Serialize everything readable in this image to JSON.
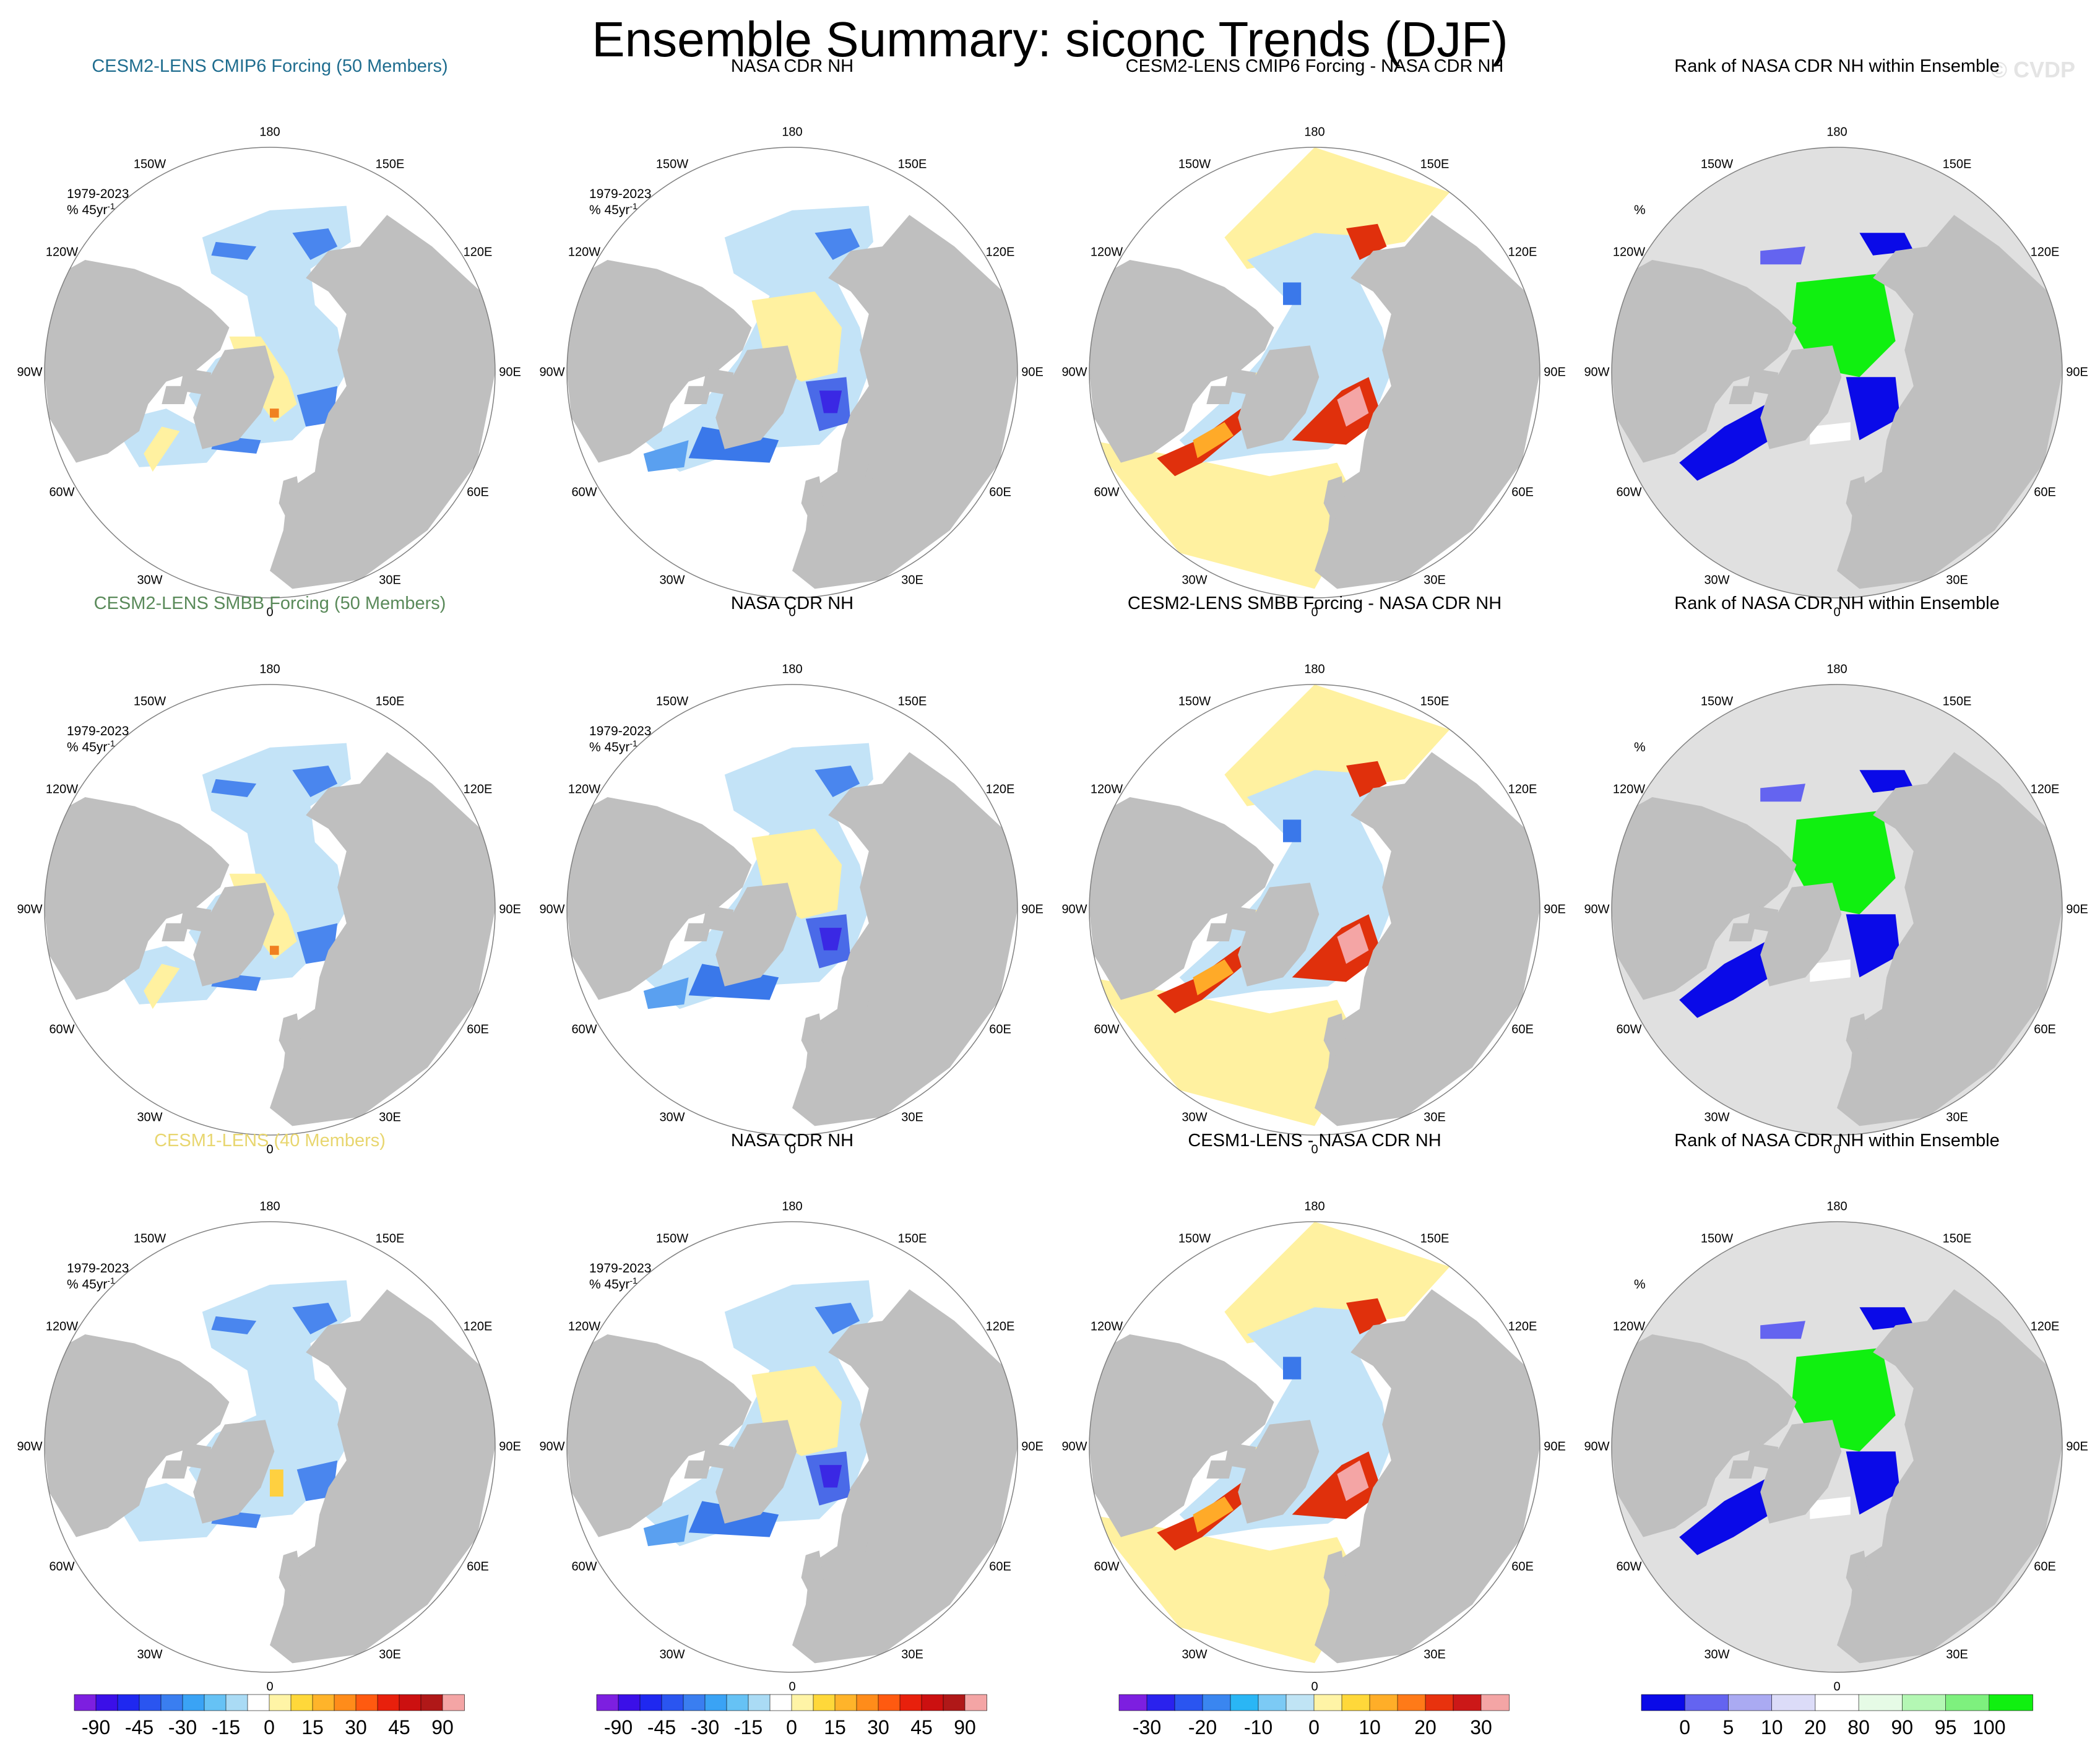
{
  "page": {
    "title": "Ensemble Summary: siconc Trends (DJF)",
    "watermark": "© CVDP"
  },
  "colors": {
    "land": "#bfbfbf",
    "open_water": "#ffffff",
    "rank_background": "#e0e0e0"
  },
  "chart_data": [
    {
      "type": "heatmap",
      "row": 0,
      "col": 0,
      "title": "CESM2-LENS CMIP6 Forcing (50 Members)",
      "title_color": "#1f6d8f",
      "period": "1979-2023",
      "units": "% 45yr",
      "units_sup": "-1",
      "colorbar": "trend",
      "pattern": "model"
    },
    {
      "type": "heatmap",
      "row": 0,
      "col": 1,
      "title": "NASA CDR NH",
      "title_color": "#000000",
      "period": "1979-2023",
      "units": "% 45yr",
      "units_sup": "-1",
      "colorbar": "trend",
      "pattern": "obs"
    },
    {
      "type": "heatmap",
      "row": 0,
      "col": 2,
      "title": "CESM2-LENS CMIP6 Forcing - NASA CDR NH",
      "title_color": "#000000",
      "period": "",
      "units": "",
      "units_sup": "",
      "colorbar": "diff",
      "pattern": "diff"
    },
    {
      "type": "heatmap",
      "row": 0,
      "col": 3,
      "title": "Rank of NASA CDR NH within Ensemble",
      "title_color": "#000000",
      "period": "",
      "units": "%",
      "units_sup": "",
      "colorbar": "rank",
      "pattern": "rank"
    },
    {
      "type": "heatmap",
      "row": 1,
      "col": 0,
      "title": "CESM2-LENS SMBB Forcing (50 Members)",
      "title_color": "#5a8a5a",
      "period": "1979-2023",
      "units": "% 45yr",
      "units_sup": "-1",
      "colorbar": "trend",
      "pattern": "model"
    },
    {
      "type": "heatmap",
      "row": 1,
      "col": 1,
      "title": "NASA CDR NH",
      "title_color": "#000000",
      "period": "1979-2023",
      "units": "% 45yr",
      "units_sup": "-1",
      "colorbar": "trend",
      "pattern": "obs"
    },
    {
      "type": "heatmap",
      "row": 1,
      "col": 2,
      "title": "CESM2-LENS SMBB Forcing - NASA CDR NH",
      "title_color": "#000000",
      "period": "",
      "units": "",
      "units_sup": "",
      "colorbar": "diff",
      "pattern": "diff"
    },
    {
      "type": "heatmap",
      "row": 1,
      "col": 3,
      "title": "Rank of NASA CDR NH within Ensemble",
      "title_color": "#000000",
      "period": "",
      "units": "%",
      "units_sup": "",
      "colorbar": "rank",
      "pattern": "rank"
    },
    {
      "type": "heatmap",
      "row": 2,
      "col": 0,
      "title": "CESM1-LENS (40 Members)",
      "title_color": "#e8d66f",
      "period": "1979-2023",
      "units": "% 45yr",
      "units_sup": "-1",
      "colorbar": "trend",
      "pattern": "model1"
    },
    {
      "type": "heatmap",
      "row": 2,
      "col": 1,
      "title": "NASA CDR NH",
      "title_color": "#000000",
      "period": "1979-2023",
      "units": "% 45yr",
      "units_sup": "-1",
      "colorbar": "trend",
      "pattern": "obs"
    },
    {
      "type": "heatmap",
      "row": 2,
      "col": 2,
      "title": "CESM1-LENS - NASA CDR NH",
      "title_color": "#000000",
      "period": "",
      "units": "",
      "units_sup": "",
      "colorbar": "diff",
      "pattern": "diff"
    },
    {
      "type": "heatmap",
      "row": 2,
      "col": 3,
      "title": "Rank of NASA CDR NH within Ensemble",
      "title_color": "#000000",
      "period": "",
      "units": "%",
      "units_sup": "",
      "colorbar": "rank",
      "pattern": "rank"
    }
  ],
  "lon_labels": [
    "180",
    "150E",
    "120E",
    "90E",
    "60E",
    "30E",
    "0",
    "30W",
    "60W",
    "90W",
    "120W",
    "150W"
  ],
  "colorbars": {
    "trend": {
      "colors": [
        "#7d1fe0",
        "#3b0fe8",
        "#1f28f0",
        "#2a55f0",
        "#3a7ef0",
        "#3aa3f5",
        "#66c2f5",
        "#aadbf5",
        "#ffffff",
        "#fff4a6",
        "#ffd83a",
        "#ffb42a",
        "#ff8c1a",
        "#ff5a10",
        "#e8200c",
        "#cc1010",
        "#b01818",
        "#f4a5a5"
      ],
      "labels": [
        "-90",
        "-45",
        "-30",
        "-15",
        "0",
        "15",
        "30",
        "45",
        "90"
      ]
    },
    "diff": {
      "colors": [
        "#7d1fe0",
        "#2a22ee",
        "#2a55f0",
        "#3a86f0",
        "#2ab6f5",
        "#7ccaf5",
        "#c0e4f5",
        "#fff4a6",
        "#ffd83a",
        "#ffae28",
        "#ff7a18",
        "#e8320e",
        "#cc1818",
        "#f4a5a5"
      ],
      "labels": [
        "-30",
        "-20",
        "-10",
        "0",
        "10",
        "20",
        "30"
      ]
    },
    "rank": {
      "colors": [
        "#0a0ae8",
        "#6464f0",
        "#aaaaf2",
        "#dcdcf8",
        "#ffffff",
        "#e6fbe6",
        "#b4f7b4",
        "#7ef07e",
        "#10f010"
      ],
      "labels": [
        "0",
        "5",
        "10",
        "20",
        "80",
        "90",
        "95",
        "100"
      ]
    }
  }
}
